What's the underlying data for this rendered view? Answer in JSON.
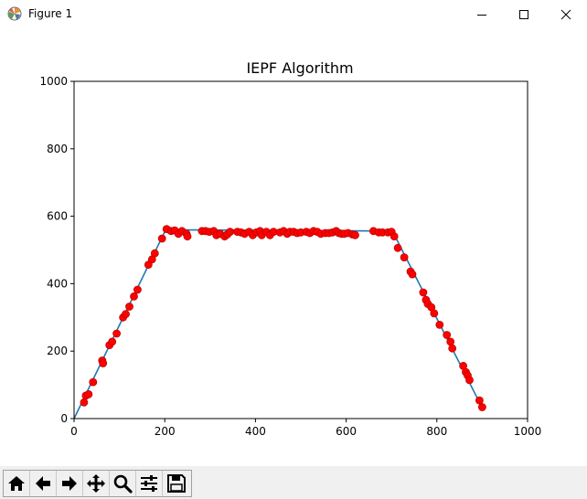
{
  "window": {
    "title": "Figure 1",
    "icons": [
      "matplotlib-logo-icon",
      "minimize-icon",
      "maximize-icon",
      "close-icon"
    ]
  },
  "toolbar": {
    "buttons": [
      {
        "name": "home-button",
        "icon": "home-icon"
      },
      {
        "name": "back-button",
        "icon": "arrow-left-icon"
      },
      {
        "name": "forward-button",
        "icon": "arrow-right-icon"
      },
      {
        "name": "pan-button",
        "icon": "move-icon"
      },
      {
        "name": "zoom-button",
        "icon": "magnifier-icon"
      },
      {
        "name": "subplots-button",
        "icon": "sliders-icon"
      },
      {
        "name": "save-button",
        "icon": "floppy-disk-icon"
      }
    ]
  },
  "chart_data": {
    "type": "scatter",
    "title": "IEPF Algorithm",
    "xlabel": "",
    "ylabel": "",
    "xlim": [
      0,
      1000
    ],
    "ylim": [
      0,
      1000
    ],
    "xticks": [
      "0",
      "200",
      "400",
      "600",
      "800",
      "1000"
    ],
    "yticks": [
      "0",
      "200",
      "400",
      "600",
      "800",
      "1000"
    ],
    "grid": false,
    "colors": {
      "points": "#ff0000",
      "point_edge": "#c00000",
      "line": "#1f77b4"
    },
    "points": [
      [
        22,
        48
      ],
      [
        26,
        68
      ],
      [
        32,
        72
      ],
      [
        42,
        108
      ],
      [
        62,
        172
      ],
      [
        64,
        164
      ],
      [
        78,
        218
      ],
      [
        84,
        228
      ],
      [
        94,
        252
      ],
      [
        108,
        300
      ],
      [
        114,
        310
      ],
      [
        122,
        332
      ],
      [
        132,
        362
      ],
      [
        140,
        382
      ],
      [
        164,
        456
      ],
      [
        172,
        472
      ],
      [
        178,
        490
      ],
      [
        194,
        534
      ],
      [
        204,
        562
      ],
      [
        214,
        556
      ],
      [
        222,
        558
      ],
      [
        230,
        548
      ],
      [
        238,
        556
      ],
      [
        248,
        548
      ],
      [
        250,
        540
      ],
      [
        282,
        556
      ],
      [
        290,
        556
      ],
      [
        298,
        554
      ],
      [
        308,
        556
      ],
      [
        314,
        544
      ],
      [
        322,
        548
      ],
      [
        332,
        540
      ],
      [
        338,
        546
      ],
      [
        344,
        554
      ],
      [
        360,
        554
      ],
      [
        368,
        552
      ],
      [
        376,
        548
      ],
      [
        386,
        554
      ],
      [
        394,
        544
      ],
      [
        402,
        552
      ],
      [
        410,
        556
      ],
      [
        414,
        544
      ],
      [
        424,
        554
      ],
      [
        432,
        544
      ],
      [
        440,
        554
      ],
      [
        454,
        552
      ],
      [
        462,
        556
      ],
      [
        470,
        548
      ],
      [
        476,
        554
      ],
      [
        484,
        554
      ],
      [
        492,
        550
      ],
      [
        500,
        552
      ],
      [
        512,
        554
      ],
      [
        520,
        550
      ],
      [
        528,
        556
      ],
      [
        536,
        554
      ],
      [
        544,
        548
      ],
      [
        554,
        550
      ],
      [
        562,
        550
      ],
      [
        570,
        552
      ],
      [
        578,
        556
      ],
      [
        584,
        550
      ],
      [
        590,
        548
      ],
      [
        596,
        548
      ],
      [
        604,
        550
      ],
      [
        614,
        546
      ],
      [
        620,
        544
      ],
      [
        660,
        556
      ],
      [
        672,
        552
      ],
      [
        680,
        552
      ],
      [
        692,
        552
      ],
      [
        700,
        554
      ],
      [
        706,
        540
      ],
      [
        714,
        506
      ],
      [
        728,
        478
      ],
      [
        742,
        436
      ],
      [
        746,
        428
      ],
      [
        770,
        374
      ],
      [
        776,
        352
      ],
      [
        780,
        340
      ],
      [
        788,
        330
      ],
      [
        794,
        312
      ],
      [
        806,
        278
      ],
      [
        822,
        248
      ],
      [
        830,
        228
      ],
      [
        834,
        208
      ],
      [
        858,
        156
      ],
      [
        864,
        138
      ],
      [
        868,
        128
      ],
      [
        872,
        114
      ],
      [
        894,
        54
      ],
      [
        900,
        34
      ]
    ],
    "line": [
      [
        0,
        0
      ],
      [
        202,
        560
      ],
      [
        702,
        556
      ],
      [
        900,
        32
      ]
    ]
  }
}
